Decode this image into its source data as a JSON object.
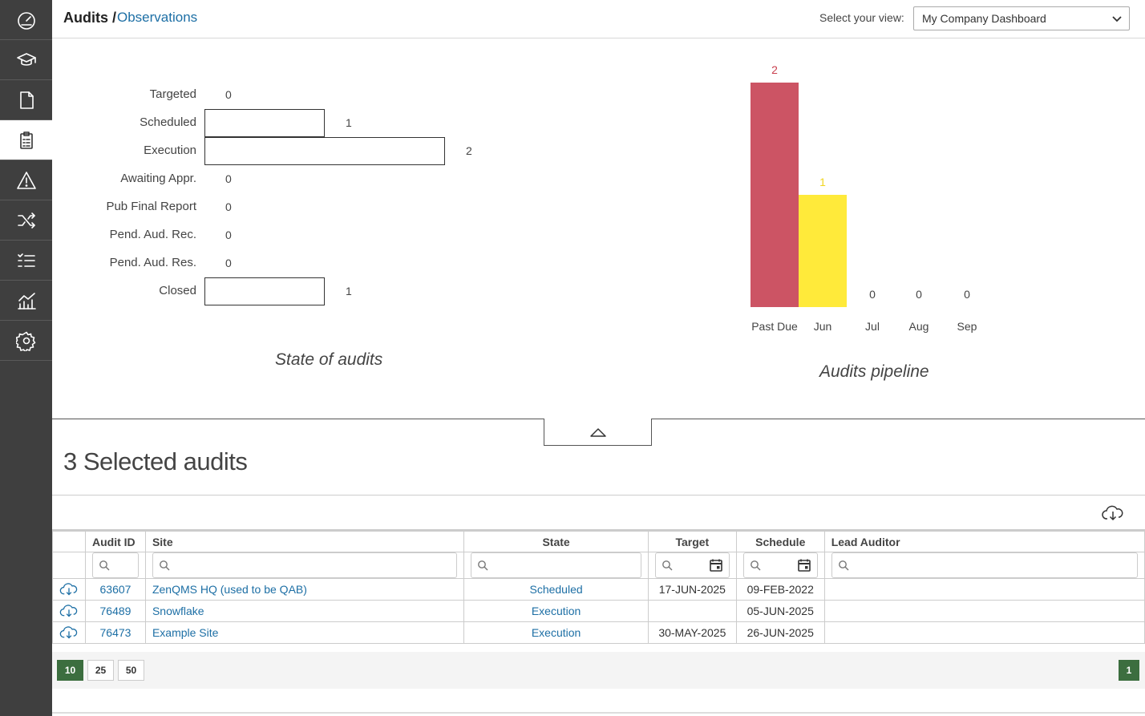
{
  "header": {
    "breadcrumb_root": "Audits /",
    "breadcrumb_link": "Observations",
    "view_label": "Select your view:",
    "view_selected": "My Company Dashboard"
  },
  "sidebar": {
    "items": [
      {
        "icon": "dashboard-gauge-icon",
        "active": false
      },
      {
        "icon": "training-cap-icon",
        "active": false
      },
      {
        "icon": "document-icon",
        "active": false
      },
      {
        "icon": "audit-clipboard-icon",
        "active": true
      },
      {
        "icon": "warning-icon",
        "active": false
      },
      {
        "icon": "shuffle-icon",
        "active": false
      },
      {
        "icon": "checklist-icon",
        "active": false
      },
      {
        "icon": "analytics-chart-icon",
        "active": false
      },
      {
        "icon": "settings-gear-icon",
        "active": false
      }
    ]
  },
  "chart_data": [
    {
      "type": "bar",
      "orientation": "horizontal",
      "title": "State of audits",
      "categories": [
        "Targeted",
        "Scheduled",
        "Execution",
        "Awaiting Appr.",
        "Pub Final Report",
        "Pend. Aud. Rec.",
        "Pend. Aud. Res.",
        "Closed"
      ],
      "values": [
        0,
        1,
        2,
        0,
        0,
        0,
        0,
        1
      ],
      "xlim": [
        0,
        2
      ]
    },
    {
      "type": "bar",
      "title": "Audits pipeline",
      "categories": [
        "Past Due",
        "Jun",
        "Jul",
        "Aug",
        "Sep"
      ],
      "values": [
        2,
        1,
        0,
        0,
        0
      ],
      "colors": [
        "#cc5464",
        "#ffea3a",
        "#cccccc",
        "#cccccc",
        "#cccccc"
      ],
      "ylim": [
        0,
        2
      ]
    }
  ],
  "selected": {
    "title": "3 Selected audits"
  },
  "table": {
    "columns": [
      "Audit ID",
      "Site",
      "State",
      "Target",
      "Schedule",
      "Lead Auditor"
    ],
    "rows": [
      {
        "id": "63607",
        "site": "ZenQMS HQ (used to be QAB)",
        "state": "Scheduled",
        "target": "17-JUN-2025",
        "schedule": "09-FEB-2022",
        "lead": ""
      },
      {
        "id": "76489",
        "site": "Snowflake",
        "state": "Execution",
        "target": "",
        "schedule": "05-JUN-2025",
        "lead": ""
      },
      {
        "id": "76473",
        "site": "Example Site",
        "state": "Execution",
        "target": "30-MAY-2025",
        "schedule": "26-JUN-2025",
        "lead": ""
      }
    ]
  },
  "pager": {
    "sizes": [
      "10",
      "25",
      "50"
    ],
    "active_size": "10",
    "page": "1"
  },
  "colors": {
    "sidebar": "#3f3f3f",
    "link": "#1d6fa5",
    "pager_active": "#3c6e3f",
    "past_due": "#cc5464",
    "current_month": "#ffea3a"
  }
}
